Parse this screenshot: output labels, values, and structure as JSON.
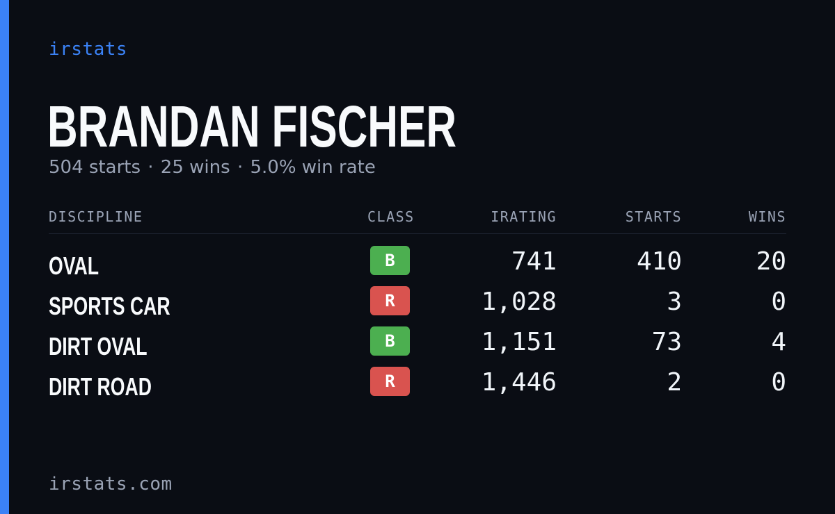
{
  "brand": "irstats",
  "driver": {
    "name": "BRANDAN FISCHER",
    "starts_text": "504 starts",
    "wins_text": "25 wins",
    "win_rate_text": "5.0% win rate",
    "separator": "·"
  },
  "table": {
    "headers": {
      "discipline": "DISCIPLINE",
      "class": "CLASS",
      "irating": "IRATING",
      "starts": "STARTS",
      "wins": "WINS"
    },
    "rows": [
      {
        "discipline": "OVAL",
        "class": "B",
        "class_color": "#4caf50",
        "irating": "741",
        "starts": "410",
        "wins": "20"
      },
      {
        "discipline": "SPORTS CAR",
        "class": "R",
        "class_color": "#d9534f",
        "irating": "1,028",
        "starts": "3",
        "wins": "0"
      },
      {
        "discipline": "DIRT OVAL",
        "class": "B",
        "class_color": "#4caf50",
        "irating": "1,151",
        "starts": "73",
        "wins": "4"
      },
      {
        "discipline": "DIRT ROAD",
        "class": "R",
        "class_color": "#d9534f",
        "irating": "1,446",
        "starts": "2",
        "wins": "0"
      }
    ]
  },
  "footer": "irstats.com",
  "colors": {
    "background": "#0a0d14",
    "accent": "#3b82f6",
    "class_b": "#4caf50",
    "class_r": "#d9534f",
    "muted_text": "#9aa3b5"
  }
}
